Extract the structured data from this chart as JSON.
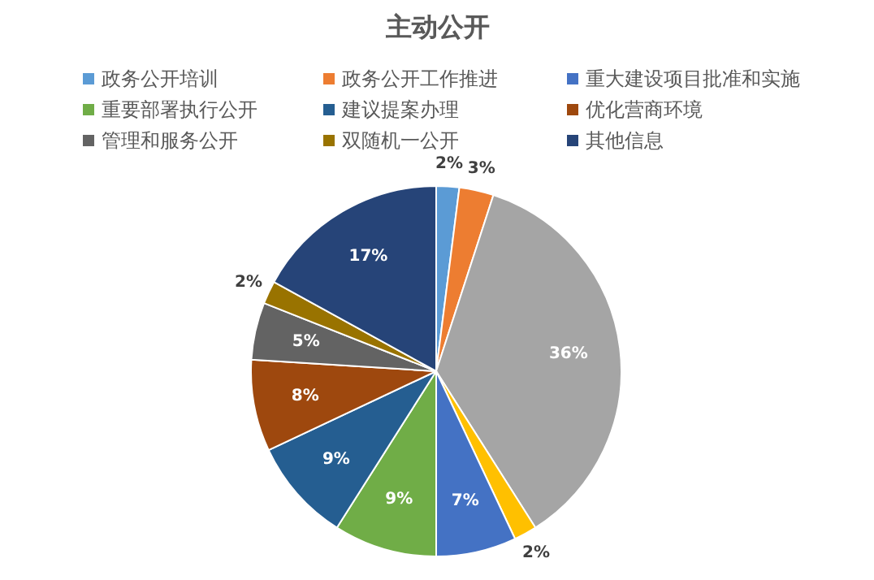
{
  "chart_data": {
    "type": "pie",
    "title": "主动公开",
    "categories": [
      "政务公开培训",
      "政务公开工作推进",
      null,
      null,
      "重大建设项目批准和实施",
      "重要部署执行公开",
      "建议提案办理",
      "优化营商环境",
      "管理和服务公开",
      "双随机一公开",
      "其他信息"
    ],
    "values": [
      2,
      3,
      36,
      2,
      7,
      9,
      9,
      8,
      5,
      2,
      17
    ],
    "colors": [
      "#5b9bd5",
      "#ed7d31",
      "#a5a5a5",
      "#ffc000",
      "#4472c4",
      "#70ad47",
      "#255e91",
      "#9e480e",
      "#636363",
      "#997300",
      "#264478"
    ],
    "value_labels": [
      "2%",
      "3%",
      "36%",
      "2%",
      "7%",
      "9%",
      "9%",
      "8%",
      "5%",
      "2%",
      "17%"
    ],
    "legend": "top"
  }
}
